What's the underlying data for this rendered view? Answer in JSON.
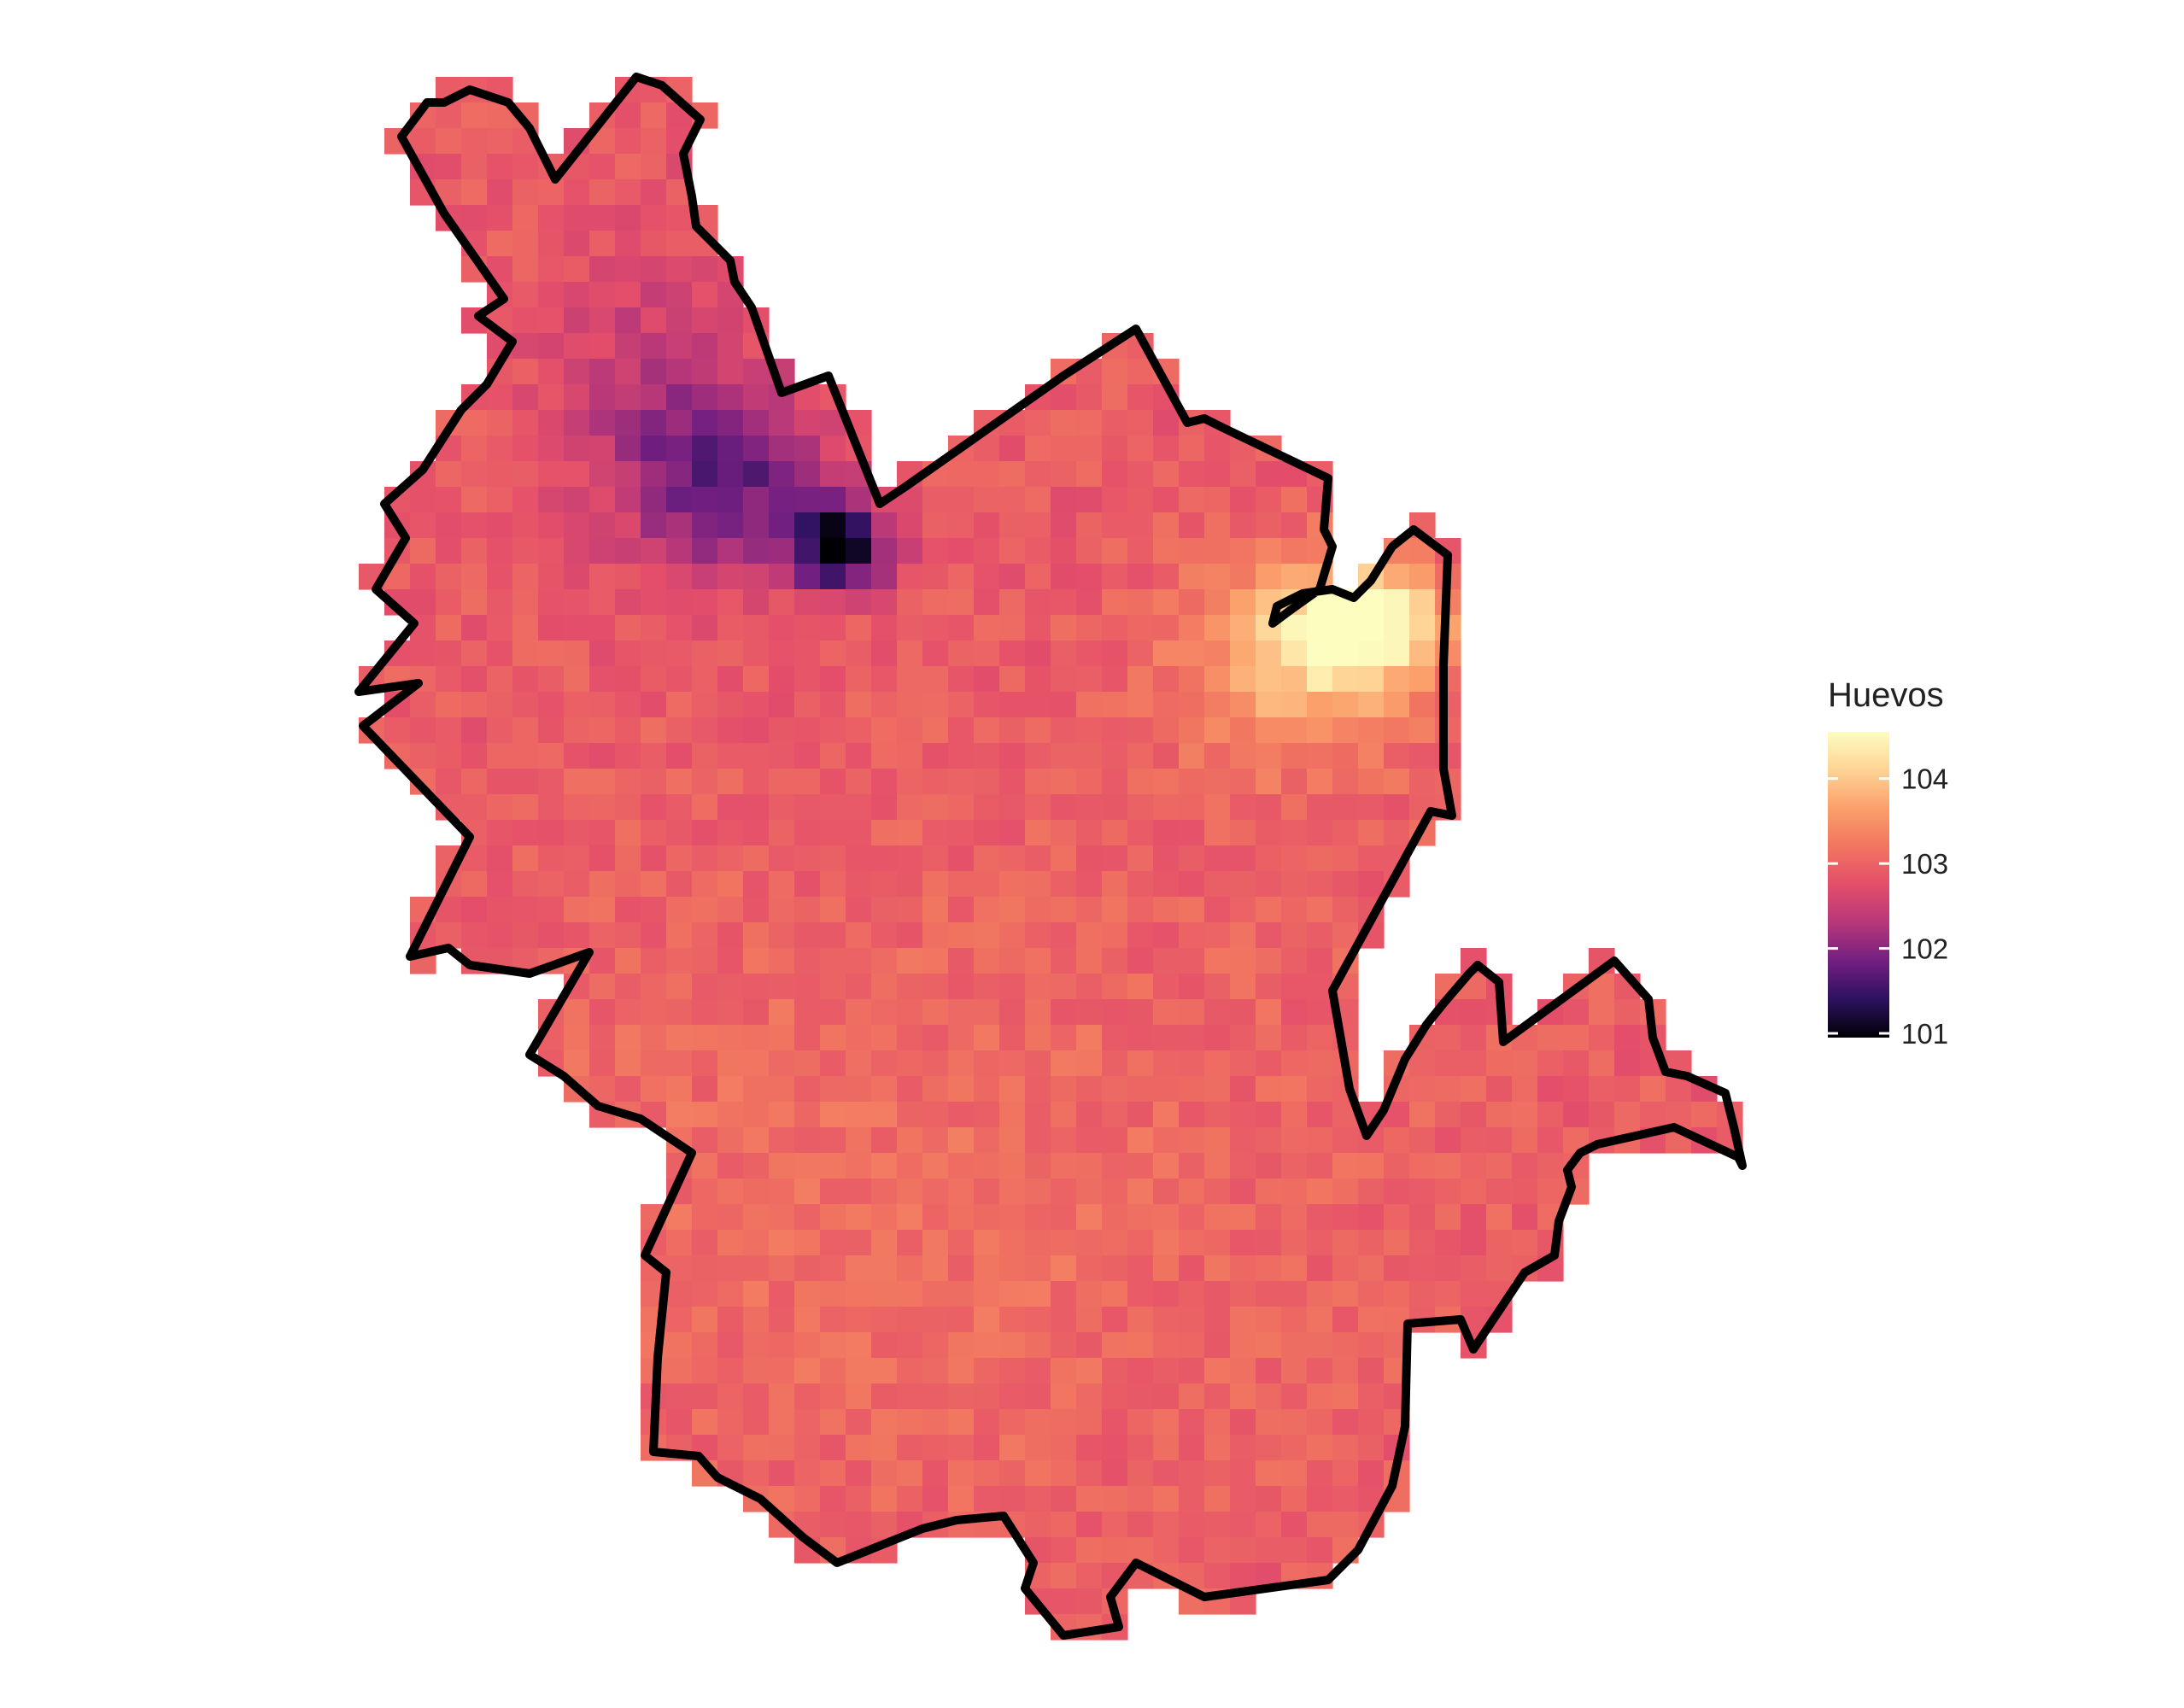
{
  "legend": {
    "title": "Huevos",
    "ticks": [
      "101",
      "102",
      "103",
      "104"
    ],
    "colors": [
      "#000004",
      "#2c115f",
      "#721f81",
      "#b73779",
      "#e44e6a",
      "#f17560",
      "#fb9f6a",
      "#fed395",
      "#fcfdbf"
    ]
  },
  "colors": {
    "outline": "#000000",
    "background": "#ffffff"
  }
}
